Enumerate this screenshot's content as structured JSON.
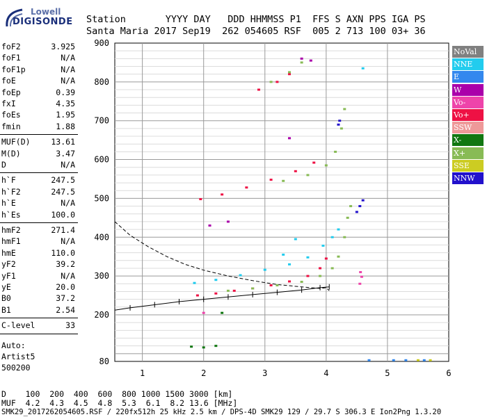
{
  "logo": {
    "line1": "Lowell",
    "line2": "DIGISONDE"
  },
  "header": {
    "line1": "Station       YYYY DAY   DDD HHMMSS P1  FFS S AXN PPS IGA PS",
    "line2": "Santa Maria 2017 Sep19  262 054605 RSF  005 2 713 100 03+ 36"
  },
  "parameters": {
    "group1": [
      {
        "name": "foF2",
        "value": "3.925"
      },
      {
        "name": "foF1",
        "value": "N/A"
      },
      {
        "name": "foF1p",
        "value": "N/A"
      },
      {
        "name": "foE",
        "value": "N/A"
      },
      {
        "name": "foEp",
        "value": "0.39"
      },
      {
        "name": "fxI",
        "value": "4.35"
      },
      {
        "name": "foEs",
        "value": "1.95"
      },
      {
        "name": "fmin",
        "value": "1.88"
      }
    ],
    "group2": [
      {
        "name": "MUF(D)",
        "value": "13.61"
      },
      {
        "name": "M(D)",
        "value": "3.47"
      },
      {
        "name": "D",
        "value": "N/A"
      }
    ],
    "group3": [
      {
        "name": "h`F",
        "value": "247.5"
      },
      {
        "name": "h`F2",
        "value": "247.5"
      },
      {
        "name": "h`E",
        "value": "N/A"
      },
      {
        "name": "h`Es",
        "value": "100.0"
      }
    ],
    "group4": [
      {
        "name": "hmF2",
        "value": "271.4"
      },
      {
        "name": "hmF1",
        "value": "N/A"
      },
      {
        "name": "hmE",
        "value": "110.0"
      },
      {
        "name": "yF2",
        "value": "39.2"
      },
      {
        "name": "yF1",
        "value": "N/A"
      },
      {
        "name": "yE",
        "value": "20.0"
      },
      {
        "name": "B0",
        "value": "37.2"
      },
      {
        "name": "B1",
        "value": "2.54"
      }
    ],
    "group5": [
      {
        "name": "C-level",
        "value": "33"
      }
    ],
    "auto": "Auto:",
    "artist": "Artist5",
    "version": "500200"
  },
  "legend": [
    {
      "label": "NoVal",
      "color": "#808080"
    },
    {
      "label": "NNE",
      "color": "#22ccee"
    },
    {
      "label": "E",
      "color": "#3388ee"
    },
    {
      "label": "W",
      "color": "#aa00aa"
    },
    {
      "label": "Vo-",
      "color": "#ee44aa"
    },
    {
      "label": "Vo+",
      "color": "#ee1144"
    },
    {
      "label": "SSW",
      "color": "#ee9999"
    },
    {
      "label": "X-",
      "color": "#117711"
    },
    {
      "label": "X+",
      "color": "#88bb55"
    },
    {
      "label": "SSE",
      "color": "#cccc22"
    },
    {
      "label": "NNW",
      "color": "#2211cc"
    }
  ],
  "muf_table": {
    "row1": "D    100  200  400  600  800 1000 1500 3000 [km]",
    "row2": "MUF  4.2  4.3  4.5  4.8  5.3  6.1  8.2 13.6 [MHz]"
  },
  "footer": "SMK29_2017262054605.RSF / 220fx512h 25 kHz 2.5 km / DPS-4D SMK29 129 / 29.7 S 306.3 E Ion2Png 1.3.20",
  "chart_data": {
    "type": "scatter",
    "xlim": [
      0.55,
      6.0
    ],
    "ylim": [
      80,
      900
    ],
    "x_ticks": [
      1,
      2,
      3,
      4,
      5,
      6
    ],
    "y_ticks": [
      80,
      200,
      300,
      400,
      500,
      600,
      700,
      800,
      900
    ],
    "grid": true,
    "series": [
      {
        "name": "Vo+",
        "color": "#ee1144",
        "points": [
          [
            1.9,
            250
          ],
          [
            2.2,
            255
          ],
          [
            2.5,
            262
          ],
          [
            2.8,
            268
          ],
          [
            3.1,
            276
          ],
          [
            3.4,
            286
          ],
          [
            3.7,
            300
          ],
          [
            3.9,
            320
          ],
          [
            4.0,
            345
          ],
          [
            1.95,
            498
          ],
          [
            2.3,
            510
          ],
          [
            2.7,
            528
          ],
          [
            3.1,
            548
          ],
          [
            3.5,
            570
          ],
          [
            3.8,
            592
          ],
          [
            2.9,
            780
          ],
          [
            3.2,
            800
          ],
          [
            3.4,
            820
          ]
        ]
      },
      {
        "name": "NNE",
        "color": "#22ccee",
        "points": [
          [
            1.85,
            282
          ],
          [
            2.2,
            290
          ],
          [
            2.6,
            302
          ],
          [
            3.0,
            316
          ],
          [
            3.4,
            330
          ],
          [
            3.7,
            348
          ],
          [
            3.95,
            378
          ],
          [
            4.1,
            400
          ],
          [
            4.2,
            420
          ],
          [
            3.3,
            355
          ],
          [
            3.5,
            395
          ],
          [
            4.6,
            835
          ]
        ]
      },
      {
        "name": "X+",
        "color": "#88bb55",
        "points": [
          [
            2.4,
            262
          ],
          [
            2.8,
            268
          ],
          [
            3.2,
            276
          ],
          [
            3.6,
            285
          ],
          [
            3.9,
            300
          ],
          [
            4.1,
            320
          ],
          [
            4.2,
            350
          ],
          [
            4.3,
            400
          ],
          [
            4.35,
            450
          ],
          [
            4.4,
            480
          ],
          [
            3.3,
            545
          ],
          [
            3.7,
            560
          ],
          [
            4.0,
            585
          ],
          [
            4.15,
            620
          ],
          [
            4.25,
            680
          ],
          [
            4.3,
            730
          ],
          [
            3.1,
            800
          ],
          [
            3.4,
            825
          ],
          [
            3.6,
            850
          ]
        ]
      },
      {
        "name": "NNW",
        "color": "#2211cc",
        "points": [
          [
            4.5,
            465
          ],
          [
            4.55,
            480
          ],
          [
            4.6,
            495
          ],
          [
            4.2,
            690
          ],
          [
            4.22,
            700
          ]
        ]
      },
      {
        "name": "W",
        "color": "#aa00aa",
        "points": [
          [
            2.1,
            430
          ],
          [
            2.4,
            440
          ],
          [
            3.6,
            860
          ],
          [
            3.75,
            855
          ],
          [
            3.4,
            655
          ]
        ]
      },
      {
        "name": "X-",
        "color": "#117711",
        "points": [
          [
            1.8,
            118
          ],
          [
            2.0,
            116
          ],
          [
            2.2,
            120
          ],
          [
            2.3,
            205
          ]
        ]
      },
      {
        "name": "E",
        "color": "#3388ee",
        "points": [
          [
            4.7,
            83
          ],
          [
            5.1,
            83
          ],
          [
            5.3,
            83
          ],
          [
            5.6,
            83
          ]
        ]
      },
      {
        "name": "SSE",
        "color": "#cccc22",
        "points": [
          [
            5.5,
            83
          ],
          [
            5.7,
            83
          ]
        ]
      },
      {
        "name": "Vo-",
        "color": "#ee44aa",
        "points": [
          [
            4.55,
            280
          ],
          [
            4.58,
            298
          ],
          [
            4.56,
            310
          ],
          [
            2.0,
            205
          ]
        ]
      }
    ],
    "profile_line": [
      [
        0.55,
        440
      ],
      [
        0.8,
        405
      ],
      [
        1.1,
        375
      ],
      [
        1.4,
        350
      ],
      [
        1.7,
        330
      ],
      [
        2.0,
        315
      ],
      [
        2.4,
        300
      ],
      [
        2.8,
        288
      ],
      [
        3.2,
        278
      ],
      [
        3.6,
        272
      ],
      [
        3.9,
        268
      ],
      [
        4.0,
        270
      ],
      [
        4.05,
        262
      ]
    ],
    "trace_line": [
      [
        0.55,
        212
      ],
      [
        0.8,
        218
      ],
      [
        1.2,
        226
      ],
      [
        1.6,
        234
      ],
      [
        2.0,
        240
      ],
      [
        2.4,
        246
      ],
      [
        2.8,
        252
      ],
      [
        3.2,
        258
      ],
      [
        3.6,
        264
      ],
      [
        3.9,
        270
      ],
      [
        4.05,
        272
      ]
    ]
  }
}
